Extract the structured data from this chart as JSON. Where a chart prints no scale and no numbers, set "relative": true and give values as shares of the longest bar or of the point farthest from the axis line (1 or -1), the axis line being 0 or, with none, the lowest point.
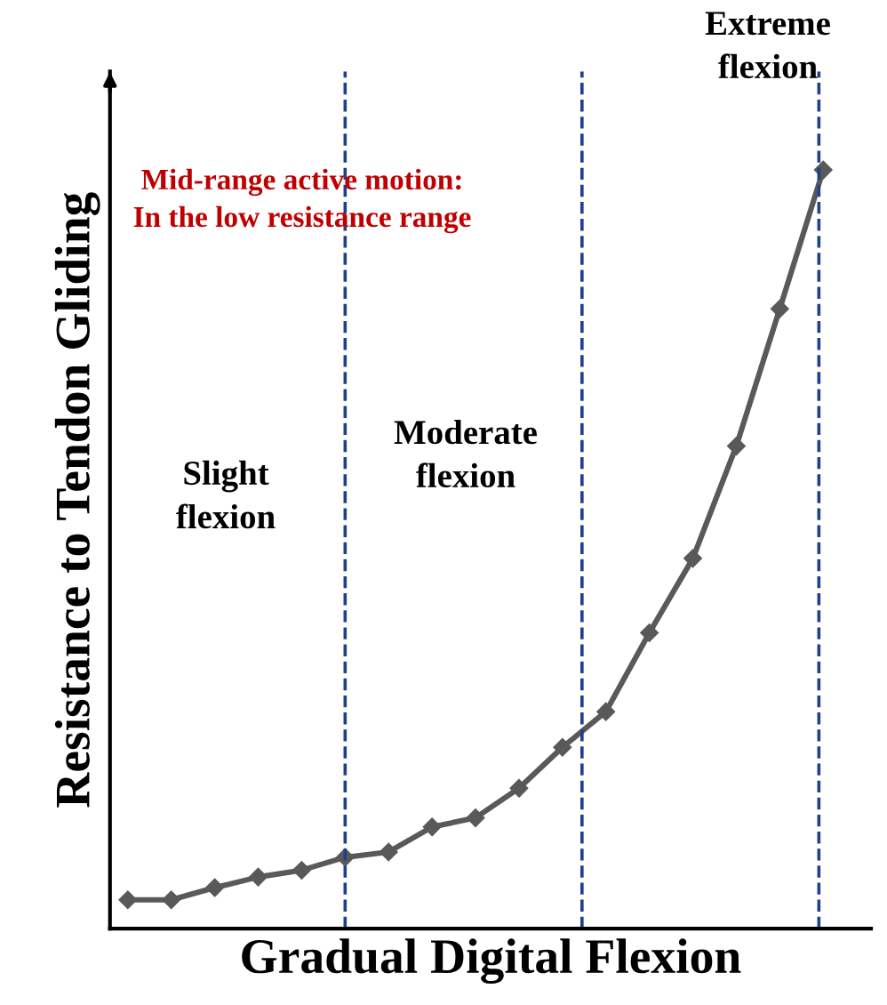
{
  "chart_data": {
    "type": "line",
    "relative": true,
    "xlabel": "Gradual Digital Flexion",
    "ylabel": "Resistance to Tendon Gliding",
    "categories": [
      null,
      null,
      null,
      null,
      null,
      null,
      null,
      null,
      null,
      null,
      null,
      null,
      null,
      null,
      null,
      null,
      null
    ],
    "series": [
      {
        "color": "#595959",
        "values": [
          0.038,
          0.038,
          0.054,
          0.068,
          0.077,
          0.094,
          0.101,
          0.134,
          0.146,
          0.185,
          0.239,
          0.286,
          0.39,
          0.488,
          0.636,
          0.817,
          1
        ]
      }
    ],
    "marker": "diamond",
    "line_style": "solid",
    "annotations": [
      "Mid-range active motion:\nIn the low resistance range",
      "Slight\nflexion",
      "Moderate\nflexion",
      "Extreme\nflexion"
    ]
  }
}
